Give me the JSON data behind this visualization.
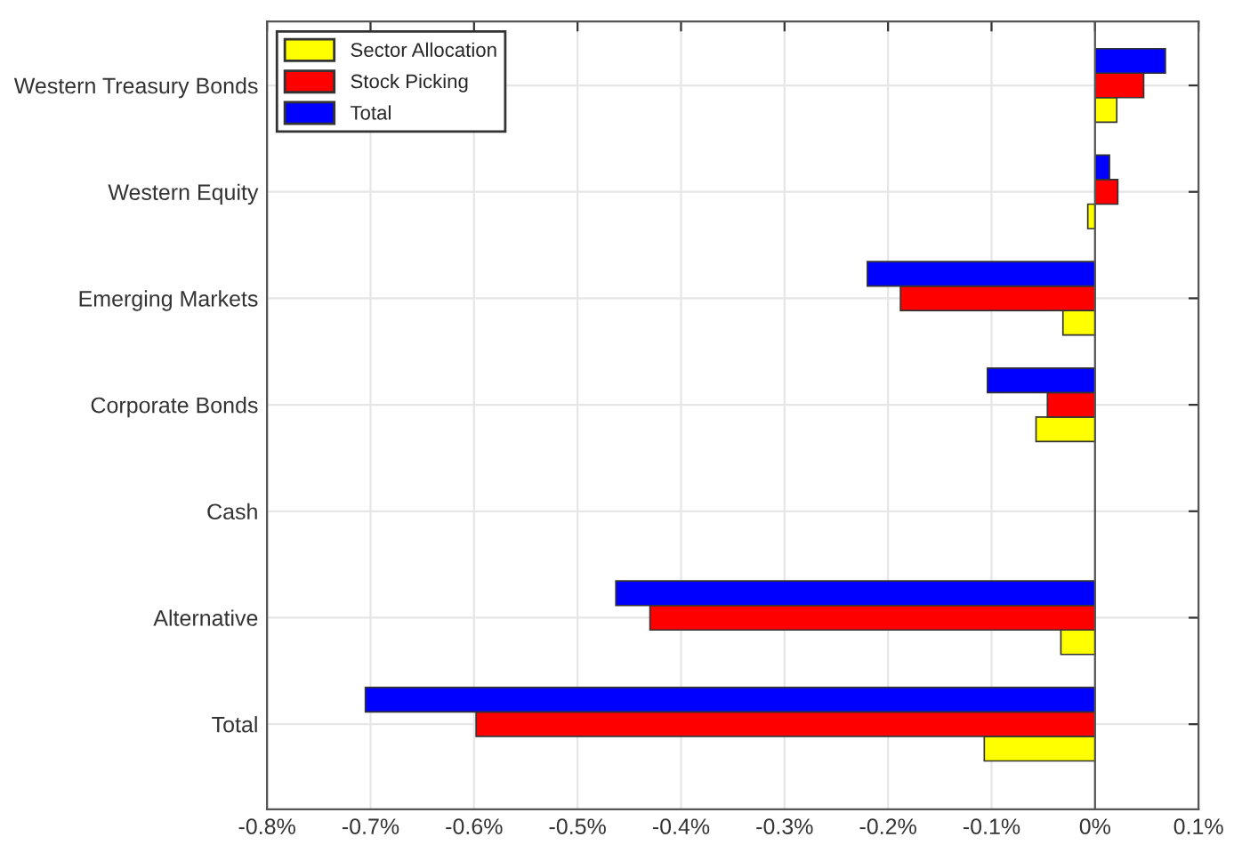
{
  "chart_data": {
    "type": "bar",
    "orientation": "horizontal",
    "categories": [
      "Western Treasury Bonds",
      "Western Equity",
      "Emerging Markets",
      "Corporate Bonds",
      "Cash",
      "Alternative",
      "Total"
    ],
    "series": [
      {
        "name": "Sector Allocation",
        "color": "#ffff00",
        "values": [
          0.021,
          -0.007,
          -0.031,
          -0.057,
          0,
          -0.033,
          -0.107
        ]
      },
      {
        "name": "Stock Picking",
        "color": "#ff0000",
        "values": [
          0.047,
          0.022,
          -0.188,
          -0.046,
          0,
          -0.43,
          -0.598
        ]
      },
      {
        "name": "Total",
        "color": "#0000ff",
        "values": [
          0.068,
          0.014,
          -0.22,
          -0.104,
          0,
          -0.463,
          -0.705
        ]
      }
    ],
    "xlim": [
      -0.8,
      0.1
    ],
    "xticks": [
      {
        "value": -0.8,
        "label": "-0.8%"
      },
      {
        "value": -0.7,
        "label": "-0.7%"
      },
      {
        "value": -0.6,
        "label": "-0.6%"
      },
      {
        "value": -0.5,
        "label": "-0.5%"
      },
      {
        "value": -0.4,
        "label": "-0.4%"
      },
      {
        "value": -0.3,
        "label": "-0.3%"
      },
      {
        "value": -0.2,
        "label": "-0.2%"
      },
      {
        "value": -0.1,
        "label": "-0.1%"
      },
      {
        "value": 0,
        "label": "0%"
      },
      {
        "value": 0.1,
        "label": "0.1%"
      }
    ],
    "grid": true,
    "legend": "top left"
  }
}
